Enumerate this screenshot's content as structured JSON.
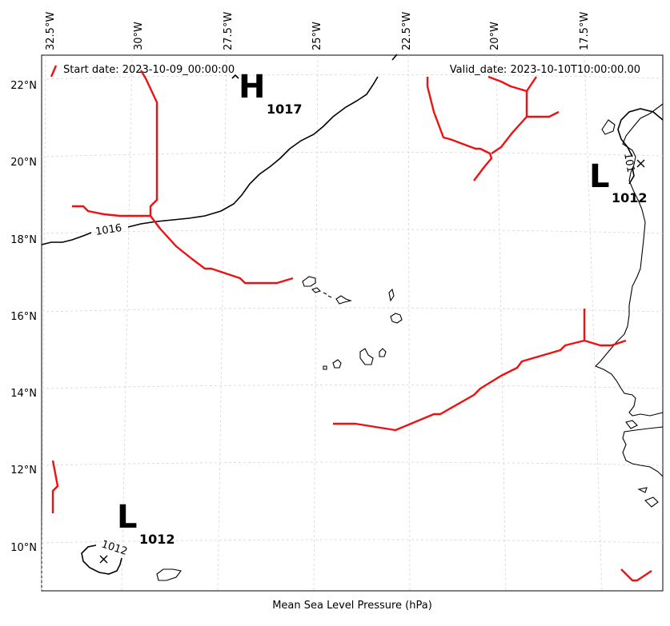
{
  "header": {
    "start_date": "Start date: 2023-10-09_00:00:00",
    "valid_date": "Valid_date: 2023-10-10T10:00:00.00"
  },
  "axis": {
    "xlabel": "Mean Sea Level Pressure (hPa)",
    "lon_ticks": [
      "32.5°W",
      "30°W",
      "27.5°W",
      "25°W",
      "22.5°W",
      "20°W",
      "17.5°W"
    ],
    "lat_ticks": [
      "22°N",
      "20°N",
      "18°N",
      "16°N",
      "14°N",
      "12°N",
      "10°N"
    ],
    "gridlines": true
  },
  "pressure_centers": [
    {
      "letter": "H",
      "value": "1017",
      "type": "high"
    },
    {
      "letter": "L",
      "value": "1012",
      "type": "low"
    },
    {
      "letter": "L",
      "value": "1012",
      "type": "low"
    }
  ],
  "isobar_labels": [
    "1016",
    "1012",
    "101"
  ],
  "colors": {
    "front": "#ee1111",
    "isobar": "#000000",
    "coast": "#000000",
    "grid": "#cccccc"
  }
}
